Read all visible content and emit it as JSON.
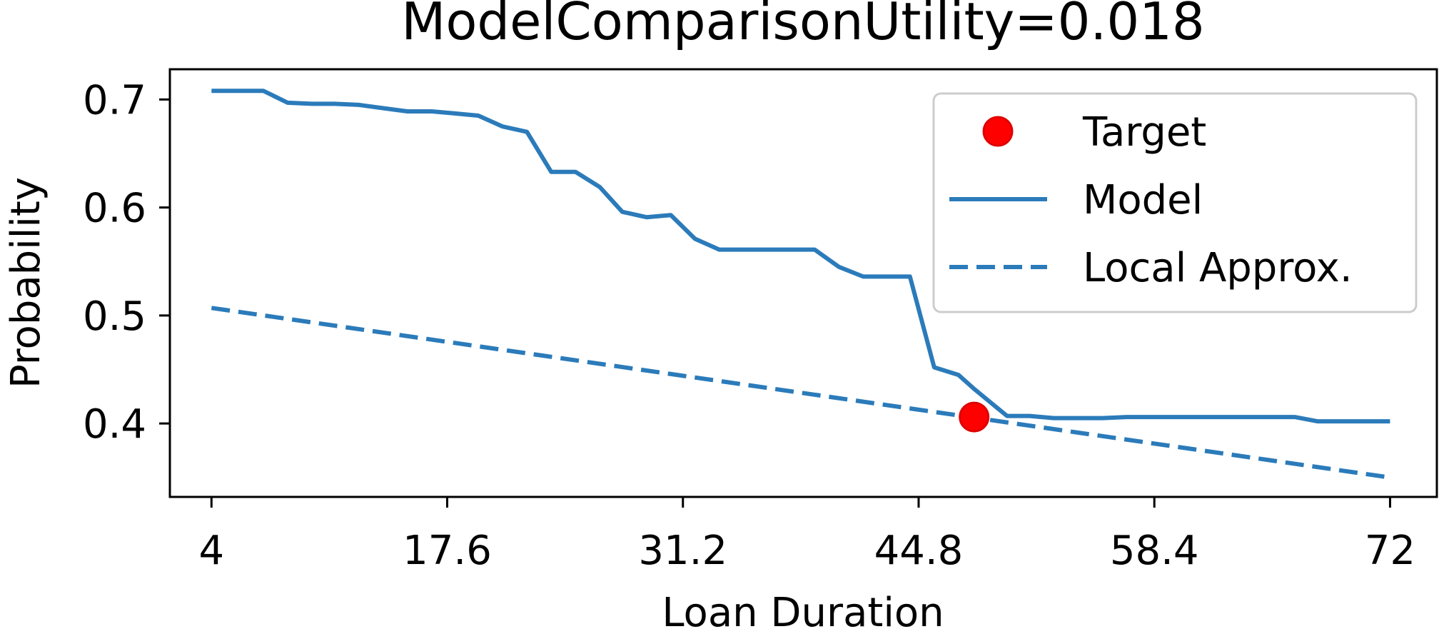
{
  "chart_data": {
    "type": "line",
    "title": "ModelComparisonUtility=0.018",
    "xlabel": "Loan Duration",
    "ylabel": "Probability",
    "xlim": [
      1.6,
      74.7
    ],
    "ylim": [
      0.332,
      0.728
    ],
    "xticks": [
      4,
      17.6,
      31.2,
      44.8,
      58.4,
      72
    ],
    "xtick_labels": [
      "4",
      "17.6",
      "31.2",
      "44.8",
      "58.4",
      "72"
    ],
    "yticks": [
      0.4,
      0.5,
      0.6,
      0.7
    ],
    "ytick_labels": [
      "0.4",
      "0.5",
      "0.6",
      "0.7"
    ],
    "grid": false,
    "legend": {
      "position": "top-right",
      "entries": [
        {
          "label": "Target",
          "kind": "marker"
        },
        {
          "label": "Model",
          "kind": "solid"
        },
        {
          "label": "Local Approx.",
          "kind": "dashed"
        }
      ]
    },
    "colors": {
      "model": "#2b7bba",
      "approx": "#2b7bba",
      "target": "#ff0000"
    },
    "series": [
      {
        "name": "Model",
        "style": "solid",
        "x": [
          4,
          6.8,
          7.0,
          8.4,
          9.8,
          11.1,
          12.5,
          13.9,
          15.3,
          16.7,
          18.1,
          19.4,
          20.8,
          22.2,
          23.6,
          25.0,
          26.4,
          27.7,
          29.1,
          30.5,
          31.9,
          33.3,
          34.7,
          36.0,
          37.4,
          38.8,
          40.2,
          41.6,
          43.0,
          44.3,
          45.7,
          47.1,
          48.0,
          49.9,
          51.2,
          52.6,
          54.0,
          55.4,
          56.8,
          58.2,
          59.5,
          60.9,
          62.3,
          63.7,
          65.1,
          66.5,
          67.8,
          69.2,
          70.6,
          72
        ],
        "y": [
          0.708,
          0.708,
          0.708,
          0.697,
          0.696,
          0.696,
          0.695,
          0.692,
          0.689,
          0.689,
          0.687,
          0.685,
          0.675,
          0.67,
          0.633,
          0.633,
          0.619,
          0.596,
          0.591,
          0.593,
          0.571,
          0.561,
          0.561,
          0.561,
          0.561,
          0.561,
          0.545,
          0.536,
          0.536,
          0.536,
          0.452,
          0.445,
          0.432,
          0.407,
          0.407,
          0.405,
          0.405,
          0.405,
          0.406,
          0.406,
          0.406,
          0.406,
          0.406,
          0.406,
          0.406,
          0.406,
          0.402,
          0.402,
          0.402,
          0.402
        ]
      },
      {
        "name": "Local Approx.",
        "style": "dashed",
        "x": [
          4,
          72
        ],
        "y": [
          0.507,
          0.35
        ]
      }
    ],
    "points": [
      {
        "name": "Target",
        "x": 48.0,
        "y": 0.406
      }
    ]
  }
}
